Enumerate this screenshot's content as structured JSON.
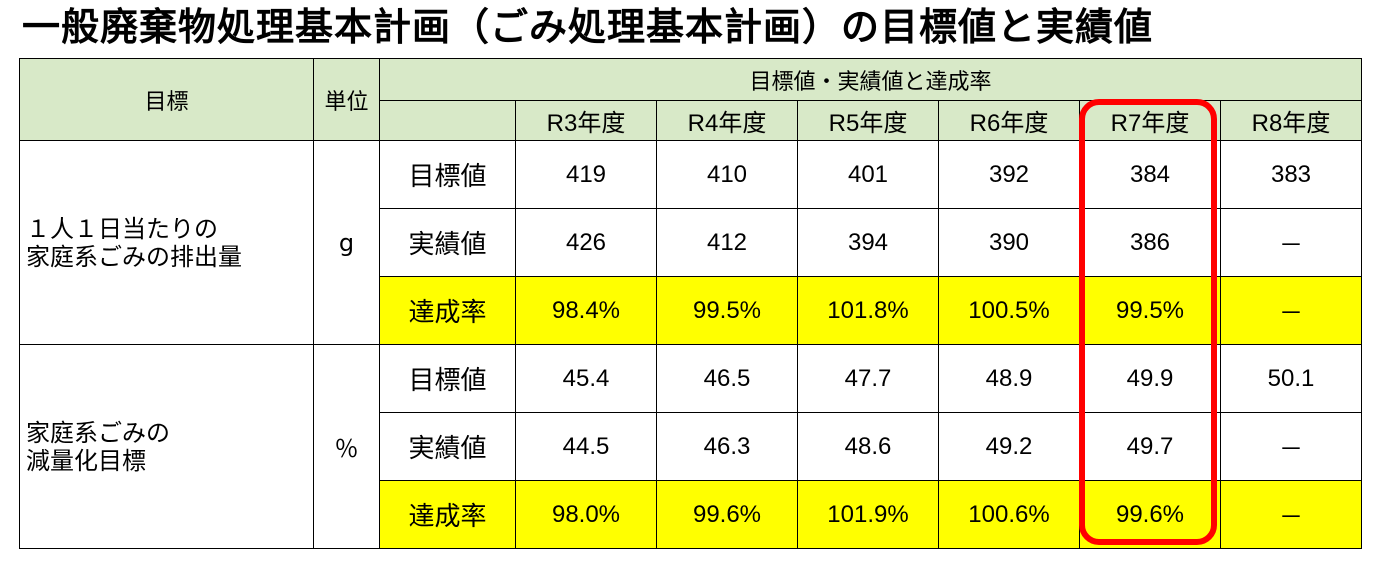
{
  "title": "一般廃棄物処理基本計画（ごみ処理基本計画）の目標値と実績値",
  "header": {
    "goal": "目標",
    "unit": "単位",
    "group": "目標値・実績値と達成率",
    "years": [
      "R3年度",
      "R4年度",
      "R5年度",
      "R6年度",
      "R7年度",
      "R8年度"
    ]
  },
  "sections": [
    {
      "goal_lines": [
        "１人１日当たりの",
        "家庭系ごみの排出量"
      ],
      "unit": "g",
      "rows": [
        {
          "label": "目標値",
          "values": [
            "419",
            "410",
            "401",
            "392",
            "384",
            "383"
          ],
          "highlight": false
        },
        {
          "label": "実績値",
          "values": [
            "426",
            "412",
            "394",
            "390",
            "386",
            "－"
          ],
          "highlight": false
        },
        {
          "label": "達成率",
          "values": [
            "98.4%",
            "99.5%",
            "101.8%",
            "100.5%",
            "99.5%",
            "－"
          ],
          "highlight": true
        }
      ]
    },
    {
      "goal_lines": [
        "家庭系ごみの",
        "減量化目標"
      ],
      "unit": "％",
      "rows": [
        {
          "label": "目標値",
          "values": [
            "45.4",
            "46.5",
            "47.7",
            "48.9",
            "49.9",
            "50.1"
          ],
          "highlight": false
        },
        {
          "label": "実績値",
          "values": [
            "44.5",
            "46.3",
            "48.6",
            "49.2",
            "49.7",
            "－"
          ],
          "highlight": false
        },
        {
          "label": "達成率",
          "values": [
            "98.0%",
            "99.6%",
            "101.9%",
            "100.6%",
            "99.6%",
            "－"
          ],
          "highlight": true
        }
      ]
    }
  ],
  "colors": {
    "header_bg": "#d8e9c8",
    "highlight_bg": "#ffff00",
    "focus_frame": "#ff0000"
  }
}
